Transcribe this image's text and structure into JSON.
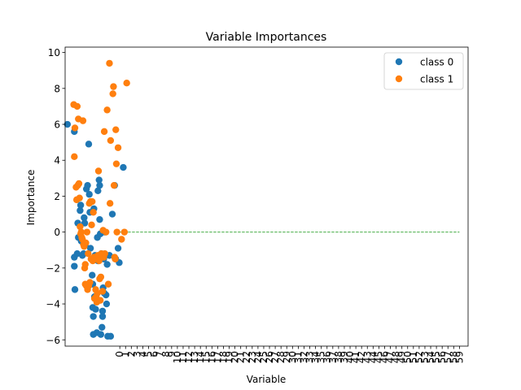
{
  "chart_data": {
    "type": "scatter",
    "title": "Variable Importances",
    "xlabel": "Variable",
    "ylabel": "Importance",
    "xlim": [
      -9.5,
      60.5
    ],
    "ylim": [
      -6.35,
      10.3
    ],
    "yticks": [
      -6,
      -4,
      -2,
      0,
      2,
      4,
      6,
      8,
      10
    ],
    "xticks": [
      0,
      1,
      2,
      3,
      4,
      5,
      6,
      7,
      8,
      9,
      10,
      11,
      12,
      13,
      14,
      15,
      16,
      17,
      18,
      19,
      20,
      21,
      22,
      23,
      24,
      25,
      26,
      27,
      28,
      29,
      30,
      31,
      32,
      33,
      34,
      35,
      36,
      37,
      38,
      39,
      40,
      41,
      42,
      43,
      44,
      45,
      46,
      47,
      48,
      49,
      50,
      51,
      52,
      53,
      54,
      55,
      56,
      57,
      58,
      59
    ],
    "legend": {
      "placement": "top-right",
      "entries": [
        "class 0",
        "class 1"
      ]
    },
    "reference_line": {
      "y": 0,
      "x_range": [
        0,
        59
      ],
      "color": "#2ca02c",
      "style": "dashed"
    },
    "colors": {
      "class0": "#1f77b4",
      "class1": "#ff7f0e"
    },
    "series": [
      {
        "name": "class 0",
        "points": [
          [
            -9.1,
            6.0
          ],
          [
            -7.9,
            5.6
          ],
          [
            -7.9,
            -1.4
          ],
          [
            -7.9,
            -1.9
          ],
          [
            -7.8,
            -3.2
          ],
          [
            -7.4,
            -1.2
          ],
          [
            -7.3,
            0.5
          ],
          [
            -7.2,
            -0.3
          ],
          [
            -6.9,
            1.2
          ],
          [
            -6.8,
            1.5
          ],
          [
            -6.7,
            -0.5
          ],
          [
            -6.6,
            -0.4
          ],
          [
            -6.5,
            -1.3
          ],
          [
            -6.4,
            -0.6
          ],
          [
            -6.3,
            -1.2
          ],
          [
            -6.2,
            0.8
          ],
          [
            -6.1,
            0.5
          ],
          [
            -6.0,
            -0.7
          ],
          [
            -5.8,
            2.4
          ],
          [
            -5.6,
            2.6
          ],
          [
            -5.4,
            4.9
          ],
          [
            -5.3,
            2.1
          ],
          [
            -5.2,
            1.1
          ],
          [
            -5.1,
            -0.9
          ],
          [
            -4.9,
            -1.5
          ],
          [
            -4.8,
            -2.4
          ],
          [
            -4.7,
            -2.9
          ],
          [
            -4.7,
            -4.2
          ],
          [
            -4.6,
            -4.7
          ],
          [
            -4.6,
            -5.7
          ],
          [
            -4.5,
            1.3
          ],
          [
            -4.4,
            -3.6
          ],
          [
            -4.3,
            -1.3
          ],
          [
            -4.2,
            -4.3
          ],
          [
            -4.0,
            -5.6
          ],
          [
            -3.9,
            -0.3
          ],
          [
            -3.8,
            2.3
          ],
          [
            -3.8,
            -1.6
          ],
          [
            -3.6,
            2.9
          ],
          [
            -3.5,
            2.6
          ],
          [
            -3.5,
            0.7
          ],
          [
            -3.4,
            -0.1
          ],
          [
            -3.3,
            -5.7
          ],
          [
            -3.2,
            -1.2
          ],
          [
            -3.1,
            -5.3
          ],
          [
            -3.0,
            -4.7
          ],
          [
            -3.0,
            -4.4
          ],
          [
            -2.9,
            -3.1
          ],
          [
            -2.8,
            -1.5
          ],
          [
            -2.7,
            -3.4
          ],
          [
            -2.6,
            0.0
          ],
          [
            -2.5,
            -1.3
          ],
          [
            -2.4,
            -3.5
          ],
          [
            -2.3,
            -4.0
          ],
          [
            -2.2,
            -1.8
          ],
          [
            -2.1,
            -5.8
          ],
          [
            -1.8,
            -1.3
          ],
          [
            -1.6,
            -5.8
          ],
          [
            -1.3,
            1.0
          ],
          [
            -0.9,
            2.6
          ],
          [
            -0.7,
            -1.5
          ],
          [
            -0.3,
            -0.9
          ],
          [
            -0.1,
            -1.7
          ],
          [
            0.6,
            3.6
          ]
        ]
      },
      {
        "name": "class 1",
        "points": [
          [
            -8.0,
            7.1
          ],
          [
            -7.9,
            4.2
          ],
          [
            -7.8,
            5.8
          ],
          [
            -7.6,
            2.5
          ],
          [
            -7.5,
            1.8
          ],
          [
            -7.4,
            7.0
          ],
          [
            -7.3,
            2.6
          ],
          [
            -7.2,
            6.3
          ],
          [
            -7.1,
            2.7
          ],
          [
            -7.0,
            1.9
          ],
          [
            -6.9,
            0.3
          ],
          [
            -6.8,
            -0.1
          ],
          [
            -6.7,
            0.0
          ],
          [
            -6.6,
            -0.3
          ],
          [
            -6.5,
            -0.4
          ],
          [
            -6.4,
            6.2
          ],
          [
            -6.3,
            -0.7
          ],
          [
            -6.2,
            -0.8
          ],
          [
            -6.1,
            -2.0
          ],
          [
            -6.0,
            -1.8
          ],
          [
            -6.0,
            -2.9
          ],
          [
            -5.9,
            -0.6
          ],
          [
            -5.8,
            -3.0
          ],
          [
            -5.7,
            0.0
          ],
          [
            -5.6,
            -3.2
          ],
          [
            -5.5,
            -1.2
          ],
          [
            -5.4,
            -3.0
          ],
          [
            -5.3,
            1.6
          ],
          [
            -5.2,
            -2.8
          ],
          [
            -5.1,
            1.7
          ],
          [
            -5.0,
            -1.5
          ],
          [
            -4.9,
            0.4
          ],
          [
            -4.8,
            1.7
          ],
          [
            -4.7,
            -1.6
          ],
          [
            -4.6,
            1.1
          ],
          [
            -4.5,
            -1.4
          ],
          [
            -4.4,
            -3.7
          ],
          [
            -4.3,
            -1.5
          ],
          [
            -4.2,
            -3.2
          ],
          [
            -4.1,
            -3.6
          ],
          [
            -4.0,
            -3.9
          ],
          [
            -3.9,
            -3.4
          ],
          [
            -3.8,
            -1.3
          ],
          [
            -3.7,
            3.4
          ],
          [
            -3.6,
            -1.6
          ],
          [
            -3.5,
            -2.6
          ],
          [
            -3.4,
            -3.8
          ],
          [
            -3.3,
            -2.5
          ],
          [
            -3.2,
            -1.2
          ],
          [
            -3.1,
            -1.3
          ],
          [
            -3.0,
            -3.3
          ],
          [
            -2.9,
            0.1
          ],
          [
            -2.8,
            -1.4
          ],
          [
            -2.7,
            5.6
          ],
          [
            -2.6,
            -1.2
          ],
          [
            -2.4,
            0.0
          ],
          [
            -2.2,
            6.8
          ],
          [
            -2.0,
            -2.9
          ],
          [
            -1.8,
            9.4
          ],
          [
            -1.7,
            1.6
          ],
          [
            -1.6,
            5.1
          ],
          [
            -1.2,
            7.7
          ],
          [
            -1.1,
            8.1
          ],
          [
            -1.0,
            2.6
          ],
          [
            -0.9,
            -1.4
          ],
          [
            -0.8,
            -1.5
          ],
          [
            -0.7,
            5.7
          ],
          [
            -0.6,
            3.8
          ],
          [
            -0.5,
            0.0
          ],
          [
            -0.3,
            4.7
          ],
          [
            0.3,
            -0.4
          ],
          [
            0.8,
            0.0
          ],
          [
            1.2,
            8.3
          ]
        ]
      }
    ]
  }
}
